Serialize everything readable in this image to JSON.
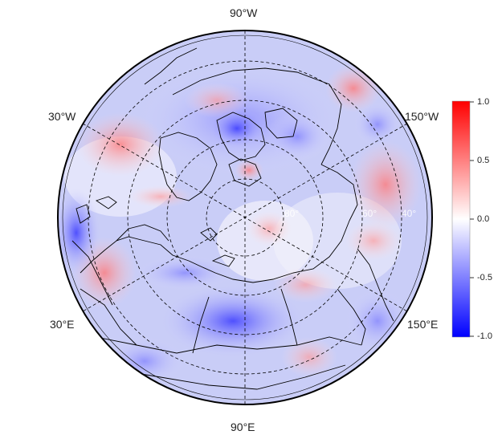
{
  "map": {
    "projection": "north polar stereographic",
    "longitude_labels": [
      "90°W",
      "30°W",
      "150°W",
      "30°E",
      "150°E",
      "90°E"
    ],
    "latitude_labels": [
      "80°",
      "60°",
      "40°"
    ],
    "graticule": "dashed",
    "coastlines": true,
    "country_borders": true
  },
  "colorbar": {
    "min": -1.0,
    "max": 1.0,
    "colors": {
      "low": "#0000ff",
      "mid": "#ffffff",
      "high": "#ff0000"
    },
    "ticks": [
      "1.0",
      "0.5",
      "0.0",
      "-0.5",
      "-1.0"
    ]
  }
}
